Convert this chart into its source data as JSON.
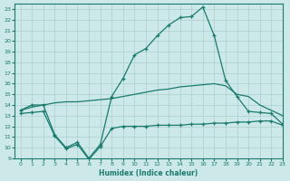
{
  "xlabel": "Humidex (Indice chaleur)",
  "xlim": [
    -0.5,
    23
  ],
  "ylim": [
    9,
    23.5
  ],
  "yticks": [
    9,
    10,
    11,
    12,
    13,
    14,
    15,
    16,
    17,
    18,
    19,
    20,
    21,
    22,
    23
  ],
  "xticks": [
    0,
    1,
    2,
    3,
    4,
    5,
    6,
    7,
    8,
    9,
    10,
    11,
    12,
    13,
    14,
    15,
    16,
    17,
    18,
    19,
    20,
    21,
    22,
    23
  ],
  "bg_color": "#cce8e8",
  "grid_color": "#aacfcf",
  "line_color": "#1a7a6e",
  "line1_x": [
    0,
    1,
    2,
    3,
    4,
    5,
    6,
    7,
    8,
    9,
    10,
    11,
    12,
    13,
    14,
    15,
    16,
    17,
    18,
    19,
    20,
    21,
    22,
    23
  ],
  "line1_y": [
    13.5,
    14.0,
    14.0,
    11.2,
    10.0,
    10.5,
    9.0,
    10.3,
    14.8,
    16.5,
    18.7,
    19.3,
    20.5,
    21.5,
    22.2,
    22.3,
    23.2,
    20.5,
    16.3,
    14.8,
    13.4,
    13.3,
    13.2,
    12.2
  ],
  "line2_x": [
    0,
    1,
    2,
    3,
    4,
    5,
    6,
    7,
    8,
    9,
    10,
    11,
    12,
    13,
    14,
    15,
    16,
    17,
    18,
    19,
    20,
    21,
    22,
    23
  ],
  "line2_y": [
    13.5,
    13.8,
    14.0,
    14.2,
    14.3,
    14.3,
    14.4,
    14.5,
    14.6,
    14.8,
    15.0,
    15.2,
    15.4,
    15.5,
    15.7,
    15.8,
    15.9,
    16.0,
    15.8,
    15.0,
    14.8,
    14.0,
    13.5,
    13.0
  ],
  "line3_x": [
    0,
    1,
    2,
    3,
    4,
    5,
    6,
    7,
    8,
    9,
    10,
    11,
    12,
    13,
    14,
    15,
    16,
    17,
    18,
    19,
    20,
    21,
    22,
    23
  ],
  "line3_y": [
    13.2,
    13.3,
    13.4,
    11.1,
    9.9,
    10.3,
    8.9,
    10.1,
    11.8,
    12.0,
    12.0,
    12.0,
    12.1,
    12.1,
    12.1,
    12.2,
    12.2,
    12.3,
    12.3,
    12.4,
    12.4,
    12.5,
    12.5,
    12.1
  ]
}
